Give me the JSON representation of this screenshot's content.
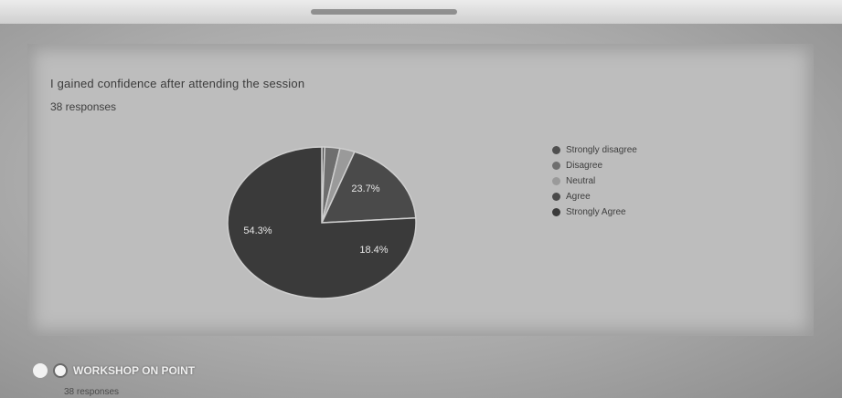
{
  "chart_data": {
    "type": "pie",
    "title": "I gained confidence after attending the session",
    "subtitle": "38 responses",
    "categories": [
      "Strongly disagree",
      "Disagree",
      "Neutral",
      "Agree",
      "Strongly Agree"
    ],
    "values": [
      0.5,
      2.6,
      2.6,
      18.4,
      76.3
    ],
    "data_labels": [
      "",
      "",
      "",
      "18.4%",
      ""
    ],
    "data_labels_strongly_agree": [
      "23.7%",
      "54.3%"
    ],
    "colors": [
      "#4f4f4f",
      "#6e6e6e",
      "#9a9a9a",
      "#4a4a4a",
      "#3a3a3a"
    ],
    "legend_position": "right"
  },
  "footer": {
    "caption": "WORKSHOP ON POINT",
    "sub": "38 responses"
  }
}
